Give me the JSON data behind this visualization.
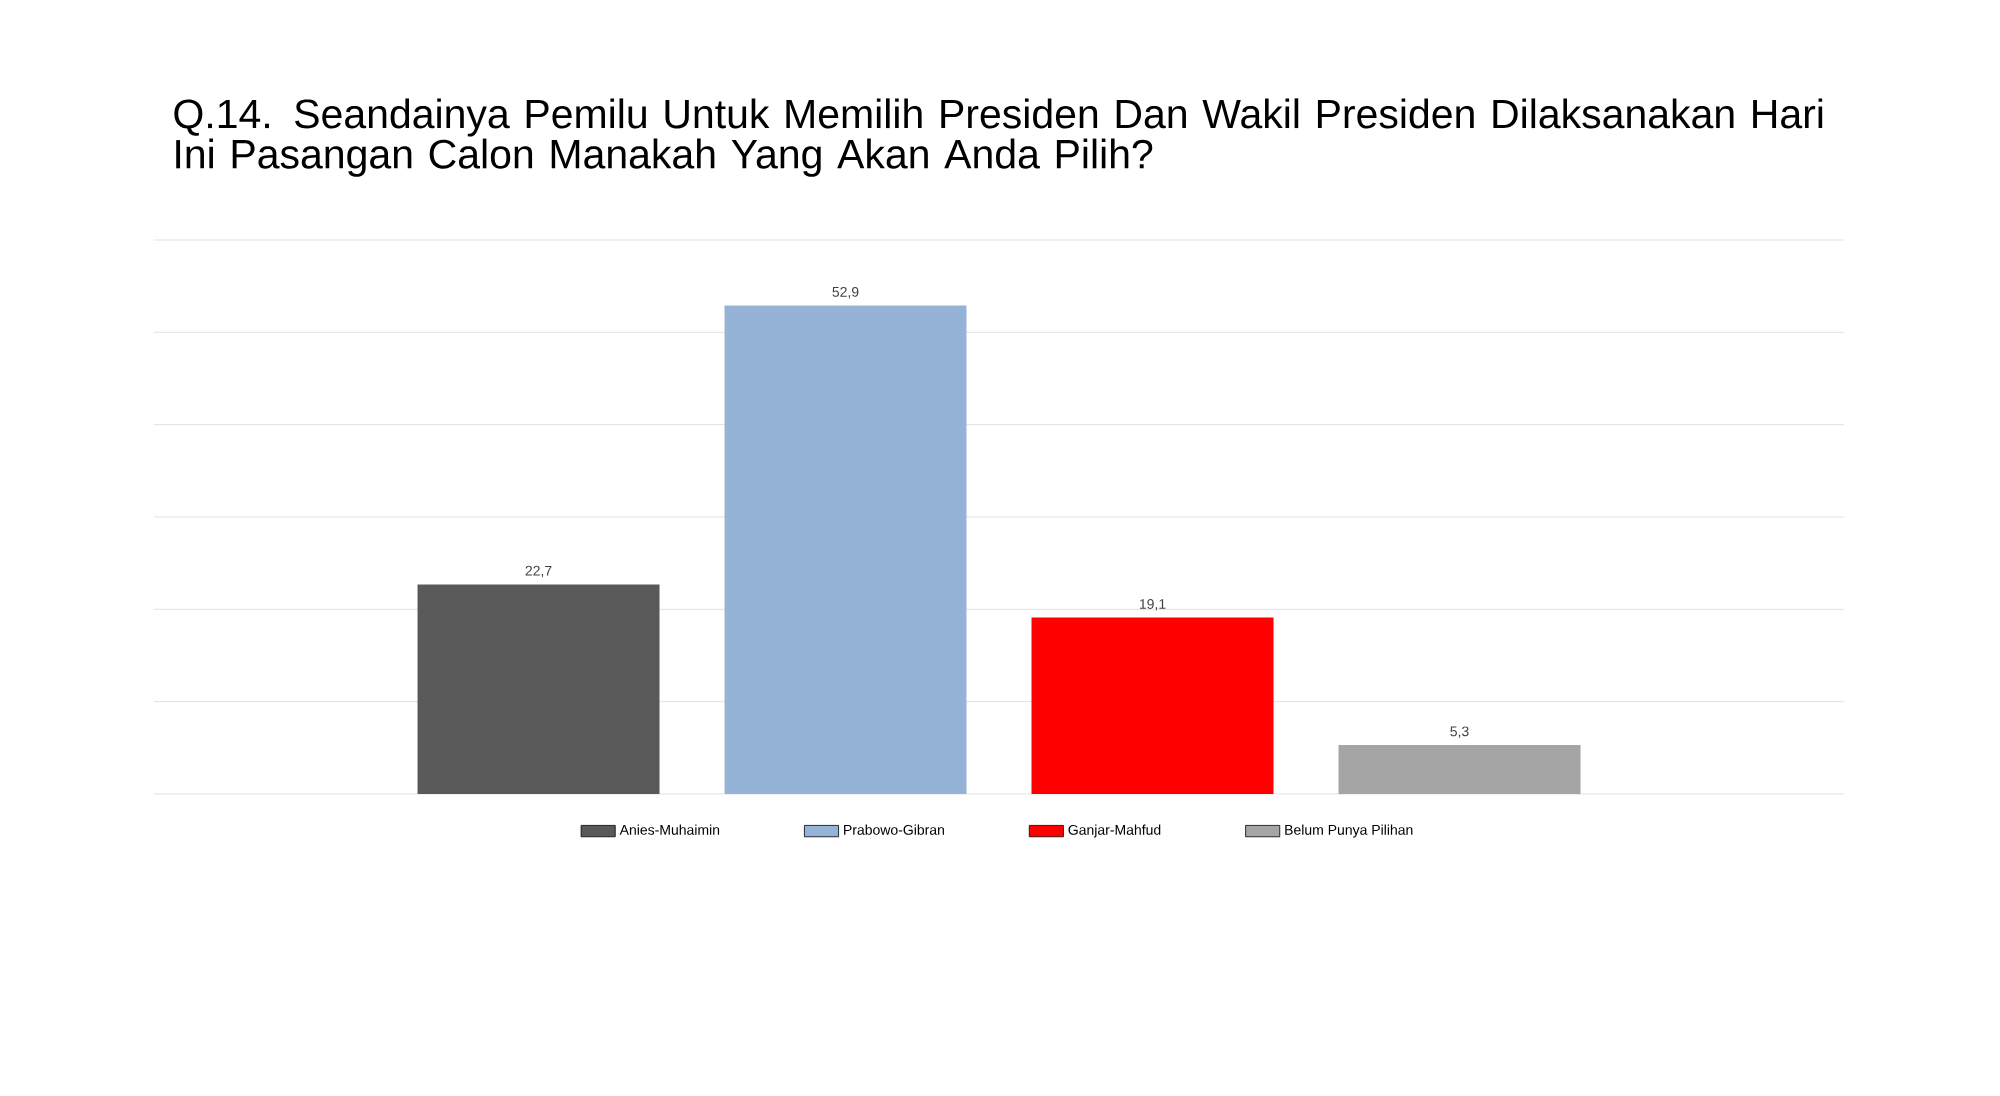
{
  "chart_data": {
    "type": "bar",
    "title": "Q.14. Seandainya Pemilu Untuk Memilih Presiden Dan Wakil Presiden Dilaksanakan Hari Ini Pasangan Calon Manakah Yang Akan Anda Pilih?",
    "categories": [
      null
    ],
    "series": [
      {
        "name": "Anies-Muhaimin",
        "color": "#595959",
        "values": [
          22.7
        ],
        "value_labels": [
          "22,7"
        ]
      },
      {
        "name": "Prabowo-Gibran",
        "color": "#95b3d7",
        "values": [
          52.9
        ],
        "value_labels": [
          "52,9"
        ]
      },
      {
        "name": "Ganjar-Mahfud",
        "color": "#ff0000",
        "values": [
          19.1
        ],
        "value_labels": [
          "19,1"
        ]
      },
      {
        "name": "Belum Punya Pilihan",
        "color": "#a5a5a5",
        "values": [
          5.3
        ],
        "value_labels": [
          "5,3"
        ]
      }
    ],
    "ylim": [
      0,
      60
    ],
    "yticks": [
      0,
      10,
      20,
      30,
      40,
      50,
      60
    ],
    "tick_labels": false,
    "grid": "y",
    "legend": "bottom"
  }
}
